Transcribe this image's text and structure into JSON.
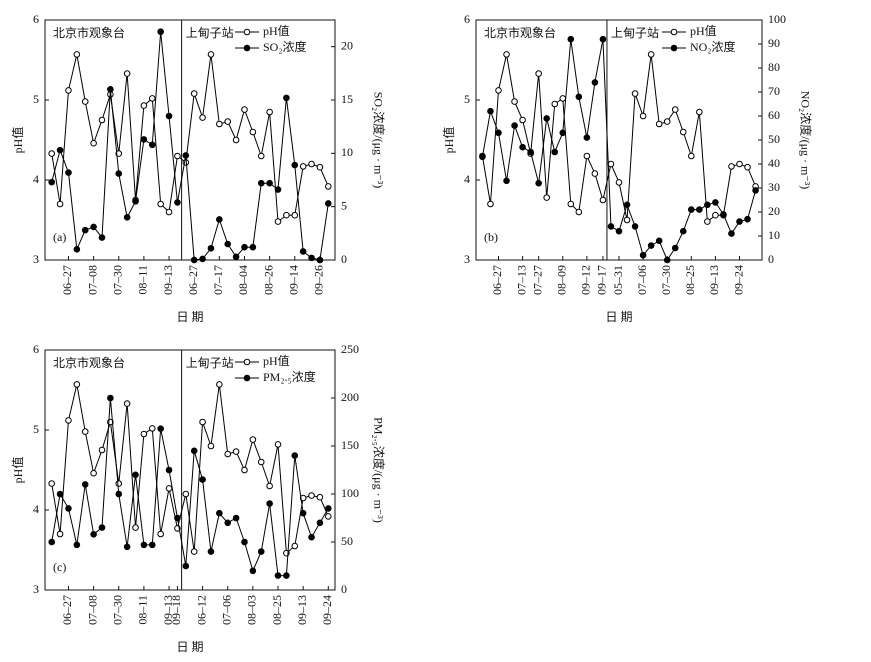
{
  "chart_data": [
    {
      "type": "line",
      "panel": "(a)",
      "xlabel": "日  期",
      "ylabel": "pH值",
      "y2label": "SO₂浓度/(μg · m⁻³)",
      "sections": [
        {
          "label": "北京市观象台",
          "categories": [
            null,
            null,
            "06–27",
            null,
            null,
            "07–08",
            null,
            null,
            "07–30",
            null,
            null,
            "08–11",
            null,
            null,
            "09–13",
            null
          ]
        },
        {
          "label": "上甸子站",
          "categories": [
            null,
            "06–27",
            null,
            null,
            "07–17",
            null,
            null,
            "08–04",
            null,
            null,
            "08–26",
            null,
            null,
            "09–14",
            null,
            null,
            "09–26",
            null
          ]
        }
      ],
      "ylim": [
        3,
        6
      ],
      "yticks": [
        3,
        4,
        5,
        6
      ],
      "y2lim": [
        0,
        22.5
      ],
      "y2ticks": [
        0,
        5,
        10,
        15,
        20
      ],
      "series": [
        {
          "name": "pH值",
          "color": "#000000",
          "marker": "open",
          "values": [
            4.33,
            3.7,
            5.12,
            5.57,
            4.98,
            4.46,
            4.75,
            5.07,
            4.33,
            5.33,
            3.75,
            4.93,
            5.02,
            3.7,
            3.6,
            4.3,
            4.22,
            5.08,
            4.78,
            5.57,
            4.7,
            4.73,
            4.5,
            4.88,
            4.6,
            4.3,
            4.85,
            3.48,
            3.56,
            3.56,
            4.17,
            4.2,
            4.16,
            3.92
          ]
        },
        {
          "name": "SO₂浓度",
          "color": "#000000",
          "marker": "filled",
          "axis": "y2",
          "values": [
            7.3,
            10.3,
            8.2,
            1.0,
            2.8,
            3.1,
            2.1,
            16.0,
            8.1,
            4.0,
            5.5,
            11.3,
            10.8,
            21.4,
            13.5,
            5.4,
            9.8,
            0.0,
            0.1,
            1.1,
            3.8,
            1.5,
            0.3,
            1.2,
            1.2,
            7.2,
            7.2,
            6.6,
            15.2,
            8.9,
            0.8,
            0.2,
            0.0,
            5.3
          ]
        }
      ]
    },
    {
      "type": "line",
      "panel": "(b)",
      "xlabel": "日  期",
      "ylabel": "pH值",
      "y2label": "NO₂浓度/(μg · m⁻³)",
      "sections": [
        {
          "label": "北京市观象台",
          "categories": [
            null,
            null,
            "06–27",
            null,
            null,
            "07–13",
            null,
            "07–27",
            null,
            null,
            "08–09",
            null,
            null,
            "09–12",
            null,
            "09–17"
          ]
        },
        {
          "label": "上甸子站",
          "categories": [
            null,
            "05–31",
            null,
            null,
            "07–06",
            null,
            null,
            "07–30",
            null,
            null,
            "08–25",
            null,
            null,
            "09–13",
            null,
            null,
            "09–24",
            null,
            null
          ]
        }
      ],
      "ylim": [
        3,
        6
      ],
      "yticks": [
        3,
        4,
        5,
        6
      ],
      "y2lim": [
        0,
        100
      ],
      "y2ticks": [
        0,
        10,
        20,
        30,
        40,
        50,
        60,
        70,
        80,
        90,
        100
      ],
      "series": [
        {
          "name": "pH值",
          "color": "#000000",
          "marker": "open",
          "values": [
            4.3,
            3.7,
            5.12,
            5.57,
            4.98,
            4.75,
            4.33,
            5.33,
            3.78,
            4.95,
            5.02,
            3.7,
            3.6,
            4.3,
            4.08,
            3.75,
            4.2,
            3.97,
            3.5,
            5.08,
            4.8,
            5.57,
            4.7,
            4.73,
            4.88,
            4.6,
            4.3,
            4.85,
            3.48,
            3.56,
            3.56,
            4.17,
            4.2,
            4.16,
            3.92
          ]
        },
        {
          "name": "NO₂浓度",
          "color": "#000000",
          "marker": "filled",
          "axis": "y2",
          "values": [
            43,
            62,
            53,
            33,
            56,
            47,
            45,
            32,
            59,
            45,
            53,
            92,
            68,
            51,
            74,
            92,
            14,
            12,
            23,
            14,
            2,
            6,
            8,
            0,
            5,
            12,
            21,
            21,
            23,
            24,
            19,
            11,
            16,
            17,
            29
          ]
        }
      ]
    },
    {
      "type": "line",
      "panel": "(c)",
      "xlabel": "日  期",
      "ylabel": "pH值",
      "y2label": "PM₂.₅浓度/(μg · m⁻³)",
      "sections": [
        {
          "label": "北京市观象台",
          "categories": [
            null,
            null,
            "06–27",
            null,
            null,
            "07–08",
            null,
            null,
            "07–30",
            null,
            null,
            "08–11",
            null,
            null,
            "09–13",
            "09–18"
          ]
        },
        {
          "label": "上甸子站",
          "categories": [
            null,
            null,
            "06–12",
            null,
            null,
            "07–06",
            null,
            null,
            "08–03",
            null,
            null,
            "08–25",
            null,
            null,
            "09–13",
            null,
            null,
            "09–24"
          ]
        }
      ],
      "ylim": [
        3,
        6
      ],
      "yticks": [
        3,
        4,
        5,
        6
      ],
      "y2lim": [
        0,
        250
      ],
      "y2ticks": [
        0,
        50,
        100,
        150,
        200,
        250
      ],
      "series": [
        {
          "name": "pH值",
          "color": "#000000",
          "marker": "open",
          "values": [
            4.33,
            3.7,
            5.12,
            5.57,
            4.98,
            4.46,
            4.75,
            5.1,
            4.33,
            5.33,
            3.78,
            4.95,
            5.02,
            3.7,
            4.27,
            3.77,
            4.2,
            3.48,
            5.1,
            4.8,
            5.57,
            4.7,
            4.73,
            4.5,
            4.88,
            4.6,
            4.3,
            4.82,
            3.46,
            3.55,
            4.15,
            4.18,
            4.16,
            3.92
          ]
        },
        {
          "name": "PM₂.₅浓度",
          "color": "#000000",
          "marker": "filled",
          "axis": "y2",
          "values": [
            50,
            100,
            85,
            47,
            110,
            58,
            65,
            200,
            100,
            45,
            120,
            47,
            47,
            168,
            125,
            75,
            25,
            145,
            115,
            40,
            80,
            70,
            75,
            50,
            20,
            40,
            90,
            15,
            15,
            140,
            80,
            55,
            70,
            85
          ]
        }
      ]
    }
  ]
}
